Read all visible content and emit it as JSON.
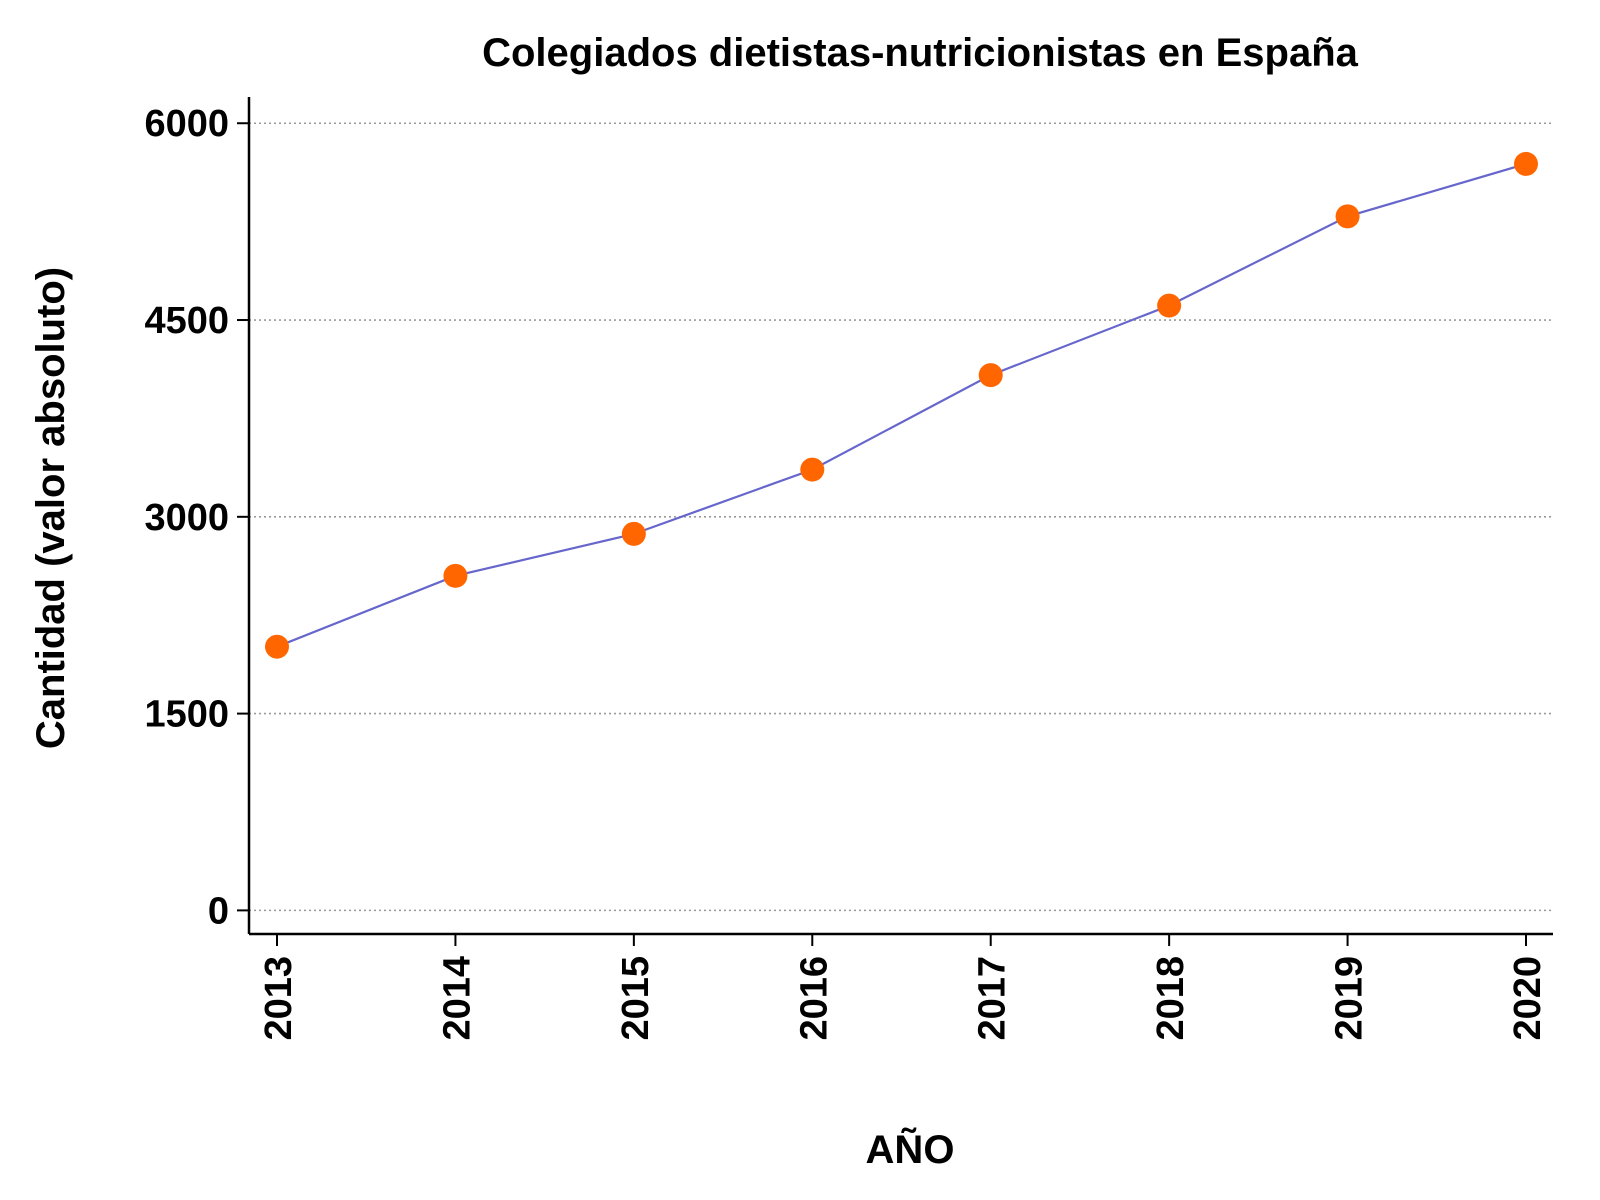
{
  "chart_data": {
    "type": "line",
    "title": "Colegiados dietistas-nutricionistas en España",
    "xlabel": "AÑO",
    "ylabel": "Cantidad (valor absoluto)",
    "categories": [
      "2013",
      "2014",
      "2015",
      "2016",
      "2017",
      "2018",
      "2019",
      "2020"
    ],
    "series": [
      {
        "values": [
          2010,
          2550,
          2870,
          3360,
          4080,
          4610,
          5290,
          5690
        ]
      }
    ],
    "ylim": [
      -180,
      6200
    ],
    "yticks": [
      0,
      1500,
      3000,
      4500,
      6000
    ],
    "ytick_labels": [
      "0",
      "1500",
      "3000",
      "4500",
      "6000"
    ],
    "grid": "horizontal-dotted",
    "legend": "none",
    "colors": {
      "line": "#6666cc",
      "marker": "#ff6600",
      "grid": "#9a9a9a",
      "axis": "#000000"
    }
  }
}
